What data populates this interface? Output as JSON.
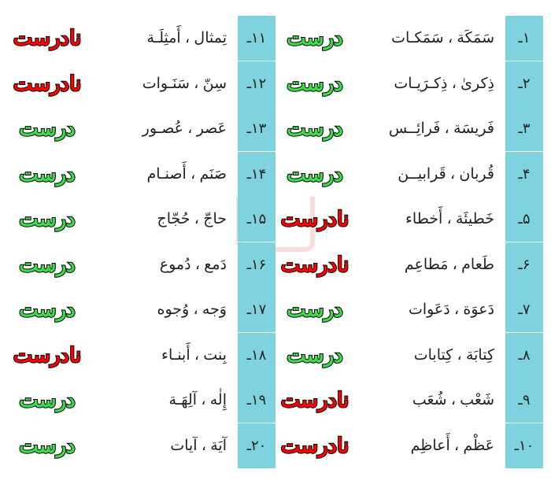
{
  "correct_label": "درست",
  "incorrect_label": "نادرست",
  "colors": {
    "num_bar_bg": "#7fd3df",
    "correct_color": "#3cdc4a",
    "incorrect_color": "#ff0000",
    "text_color": "#222222",
    "outline_color": "#000000",
    "background": "#ffffff"
  },
  "fonts": {
    "word_size": 19,
    "result_size": 26,
    "num_size": 18
  },
  "col_right": [
    {
      "num": "۱ـ",
      "word": "سَمَکَة ، سَمَکـات",
      "result": "correct"
    },
    {
      "num": "۲ـ",
      "word": "ذِکریٰ ، ذِکـرَیـات",
      "result": "correct"
    },
    {
      "num": "۳ـ",
      "word": "فَریسَة ، فَرائِــس",
      "result": "correct"
    },
    {
      "num": "۴ـ",
      "word": "قُربان ، قَرابیــن",
      "result": "correct"
    },
    {
      "num": "۵ـ",
      "word": "خَطیئَة ، أَخطاء",
      "result": "incorrect"
    },
    {
      "num": "۶ـ",
      "word": "طَعام ، مَطاعِم",
      "result": "incorrect"
    },
    {
      "num": "۷ـ",
      "word": "دَعوَة ، دَعَوات",
      "result": "correct"
    },
    {
      "num": "۸ـ",
      "word": "کِتابَة ، کِتابات",
      "result": "correct"
    },
    {
      "num": "۹ـ",
      "word": "شَعْب ، شُعَب",
      "result": "incorrect"
    },
    {
      "num": "۱۰ـ",
      "word": "عَظْم ، أَعاظِم",
      "result": "incorrect"
    }
  ],
  "col_left": [
    {
      "num": "۱۱ـ",
      "word": "تِمثال ، أَمثِلَـة",
      "result": "incorrect"
    },
    {
      "num": "۱۲ـ",
      "word": "سِنّ ، سَنَـوات",
      "result": "incorrect"
    },
    {
      "num": "۱۳ـ",
      "word": "عَصر ، عُصـور",
      "result": "correct"
    },
    {
      "num": "۱۴ـ",
      "word": "صَنَم ، أَصنـام",
      "result": "correct"
    },
    {
      "num": "۱۵ـ",
      "word": "حاجّ ، حُجّاج",
      "result": "correct"
    },
    {
      "num": "۱۶ـ",
      "word": "دَمع ، دُموع",
      "result": "correct"
    },
    {
      "num": "۱۷ـ",
      "word": "وَجه ، وُجوه",
      "result": "correct"
    },
    {
      "num": "۱۸ـ",
      "word": "بِنت ، أَبنـاء",
      "result": "incorrect"
    },
    {
      "num": "۱۹ـ",
      "word": "إِلٰه ، آلِهَـة",
      "result": "correct"
    },
    {
      "num": "۲۰ـ",
      "word": "آیَة ، آیات",
      "result": "correct"
    }
  ]
}
